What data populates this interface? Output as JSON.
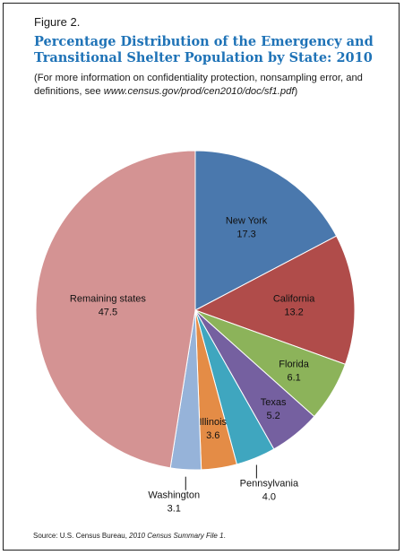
{
  "figure_label": "Figure 2.",
  "title_line1": "Percentage Distribution of the Emergency and",
  "title_line2": "Transitional Shelter Population by State: 2010",
  "subtitle_part1": "(For more information on confidentiality protection, nonsampling error, and definitions, see ",
  "subtitle_url": "www.census.gov/prod/cen2010/doc/sf1.pdf",
  "subtitle_part2": ")",
  "source_prefix": "Source: U.S. Census Bureau, ",
  "source_title": "2010 Census Summary File 1",
  "source_suffix": ".",
  "colors": {
    "title": "#1f73b7",
    "border": "#1f1f1f",
    "slice_stroke": "#ffffff"
  },
  "chart_data": {
    "type": "pie",
    "start": "12 o'clock",
    "direction": "clockwise",
    "slices": [
      {
        "label": "New York",
        "value": 17.3,
        "value_text": "17.3",
        "color": "#4a78ad",
        "label_placement": "inside"
      },
      {
        "label": "California",
        "value": 13.2,
        "value_text": "13.2",
        "color": "#b04c4a",
        "label_placement": "inside"
      },
      {
        "label": "Florida",
        "value": 6.1,
        "value_text": "6.1",
        "color": "#8cb35a",
        "label_placement": "inside"
      },
      {
        "label": "Texas",
        "value": 5.2,
        "value_text": "5.2",
        "color": "#7560a0",
        "label_placement": "inside"
      },
      {
        "label": "Pennsylvania",
        "value": 4.0,
        "value_text": "4.0",
        "color": "#3fa6bf",
        "label_placement": "outside"
      },
      {
        "label": "Illinois",
        "value": 3.6,
        "value_text": "3.6",
        "color": "#e48c46",
        "label_placement": "inside"
      },
      {
        "label": "Washington",
        "value": 3.1,
        "value_text": "3.1",
        "color": "#96b3d9",
        "label_placement": "outside"
      },
      {
        "label": "Remaining states",
        "value": 47.5,
        "value_text": "47.5",
        "color": "#d49393",
        "label_placement": "inside"
      }
    ]
  }
}
